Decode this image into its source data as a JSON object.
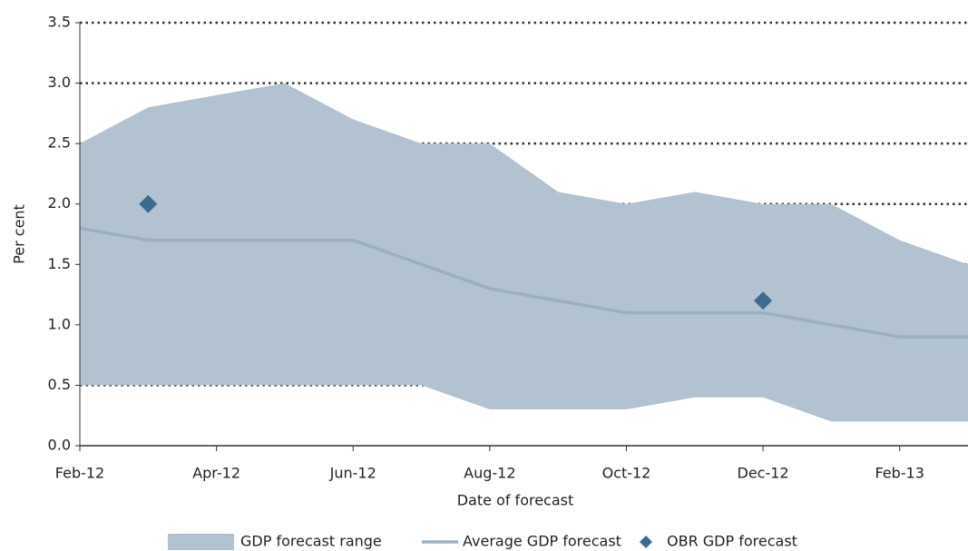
{
  "chart_data": {
    "type": "line",
    "x_label": "Date of forecast",
    "y_label": "Per cent",
    "categories": [
      "Feb-12",
      null,
      "Apr-12",
      null,
      "Jun-12",
      null,
      "Aug-12",
      null,
      "Oct-12",
      null,
      "Dec-12",
      null,
      "Feb-13",
      null
    ],
    "series": [
      {
        "name": "GDP forecast range",
        "type": "area",
        "color": "#b2c2d1",
        "high": [
          2.5,
          2.8,
          2.9,
          3.0,
          2.7,
          2.5,
          2.5,
          2.1,
          2.0,
          2.1,
          2.0,
          2.0,
          1.7,
          1.5
        ],
        "low": [
          0.5,
          0.5,
          0.5,
          0.5,
          0.5,
          0.5,
          0.3,
          0.3,
          0.3,
          0.4,
          0.4,
          0.2,
          0.2,
          0.2
        ]
      },
      {
        "name": "Average GDP forecast",
        "type": "line",
        "color": "#9ab0c2",
        "values": [
          1.8,
          1.7,
          1.7,
          1.7,
          1.7,
          1.5,
          1.3,
          1.2,
          1.1,
          1.1,
          1.1,
          1.0,
          0.9,
          0.9
        ]
      },
      {
        "name": "OBR GDP forecast",
        "type": "scatter",
        "color": "#3e6a8e",
        "values": [
          null,
          2.0,
          null,
          null,
          null,
          null,
          null,
          null,
          null,
          null,
          1.2,
          null,
          null,
          null
        ]
      }
    ],
    "ylim": [
      0,
      3.5
    ],
    "yticks": [
      {
        "value": 0,
        "label": "0.0"
      },
      0.5,
      {
        "value": 1,
        "label": "1.0"
      },
      1.5,
      {
        "value": 2,
        "label": "2.0"
      },
      2.5,
      {
        "value": 3,
        "label": "3.0"
      },
      3.5
    ],
    "grid": true
  }
}
